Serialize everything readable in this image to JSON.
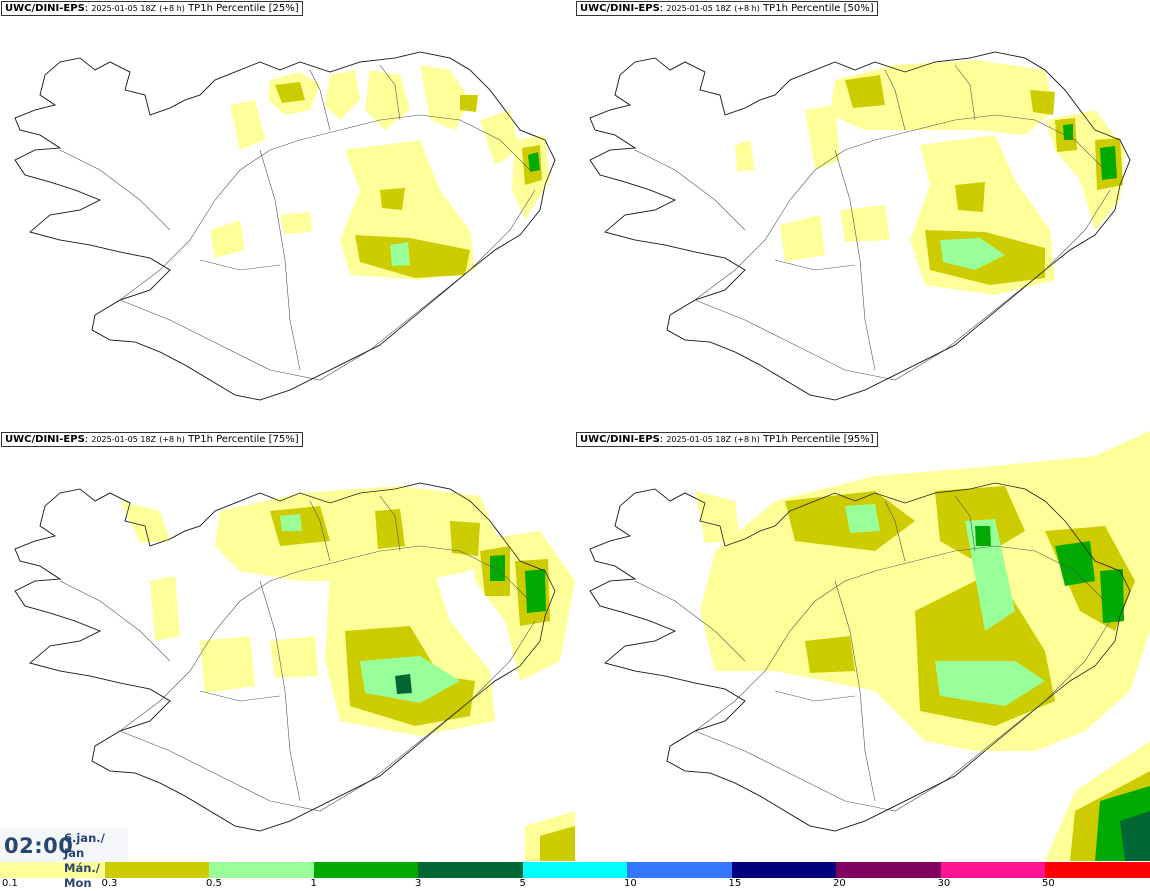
{
  "panels": [
    {
      "model": "UWC/DINI-EPS",
      "run": "2025-01-05 18Z",
      "lead": "(+8 h)",
      "field": "TP1h Percentile [25%]",
      "level": 1
    },
    {
      "model": "UWC/DINI-EPS",
      "run": "2025-01-05 18Z",
      "lead": "(+8 h)",
      "field": "TP1h Percentile [50%]",
      "level": 2
    },
    {
      "model": "UWC/DINI-EPS",
      "run": "2025-01-05 18Z",
      "lead": "(+8 h)",
      "field": "TP1h Percentile [75%]",
      "level": 3
    },
    {
      "model": "UWC/DINI-EPS",
      "run": "2025-01-05 18Z",
      "lead": "(+8 h)",
      "field": "TP1h Percentile [95%]",
      "level": 4
    }
  ],
  "valid_time": {
    "time": "02:00",
    "date_line1": "6.jan./ Jan",
    "date_line2": "Mán./ Mon"
  },
  "legend": {
    "thresholds": [
      "0.1",
      "0.3",
      "0.5",
      "1",
      "3",
      "5",
      "10",
      "15",
      "20",
      "30",
      "50"
    ],
    "colors": [
      "#ffff99",
      "#cccc00",
      "#99ff99",
      "#00aa00",
      "#006633",
      "#00ffff",
      "#3377ff",
      "#000080",
      "#800060",
      "#ff1493",
      "#ff0000"
    ]
  }
}
